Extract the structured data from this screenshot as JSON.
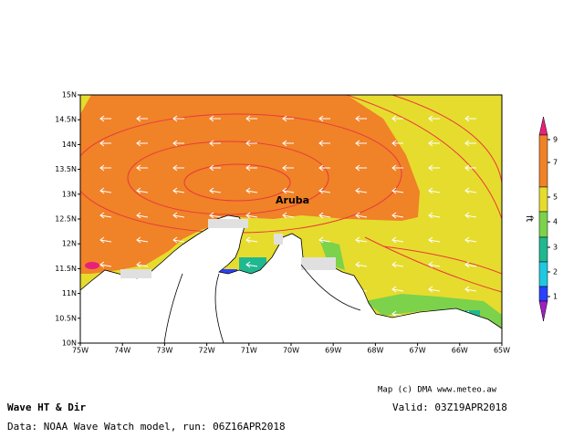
{
  "map": {
    "title": "Wave HT & Dir",
    "place_label": "Aruba",
    "credit": "Map (c) DMA www.meteo.aw",
    "valid": "Valid: 03Z19APR2018",
    "source": "Data: NOAA Wave Watch model, run: 06Z16APR2018",
    "lat_ticks": [
      "15N",
      "14.5N",
      "14N",
      "13.5N",
      "13N",
      "12.5N",
      "12N",
      "11.5N",
      "11N",
      "10.5N",
      "10N"
    ],
    "lon_ticks": [
      "75W",
      "74W",
      "73W",
      "72W",
      "71W",
      "70W",
      "69W",
      "68W",
      "67W",
      "66W",
      "65W"
    ],
    "colorbar": {
      "label": "ft",
      "ticks": [
        1,
        2,
        3,
        4,
        5,
        7,
        9
      ]
    }
  }
}
